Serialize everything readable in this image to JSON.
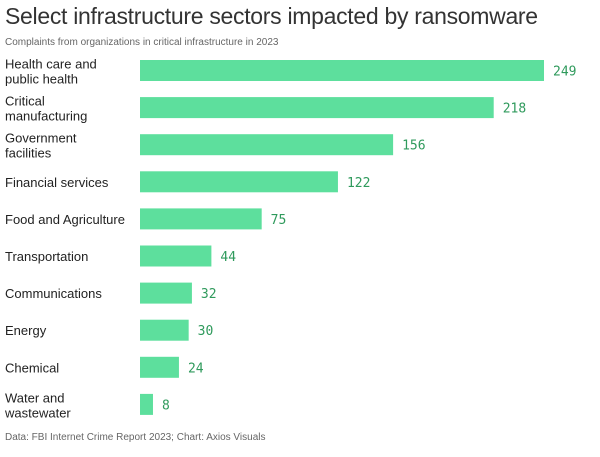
{
  "chart_data": {
    "type": "bar",
    "orientation": "horizontal",
    "title": "Select infrastructure sectors impacted by ransomware",
    "subtitle": "Complaints from organizations in critical infrastructure in 2023",
    "source": "Data: FBI Internet Crime Report 2023; Chart: Axios Visuals",
    "categories": [
      [
        "Health care and",
        "public health"
      ],
      [
        "Critical",
        "manufacturing"
      ],
      [
        "Government",
        "facilities"
      ],
      [
        "Financial services"
      ],
      [
        "Food and Agriculture"
      ],
      [
        "Transportation"
      ],
      [
        "Communications"
      ],
      [
        "Energy"
      ],
      [
        "Chemical"
      ],
      [
        "Water and",
        "wastewater"
      ]
    ],
    "values": [
      249,
      218,
      156,
      122,
      75,
      44,
      32,
      30,
      24,
      8
    ],
    "xlim": [
      0,
      249
    ],
    "grid": false,
    "bar_color": "#5ddf9d",
    "label_color": "#2f9a5c"
  }
}
